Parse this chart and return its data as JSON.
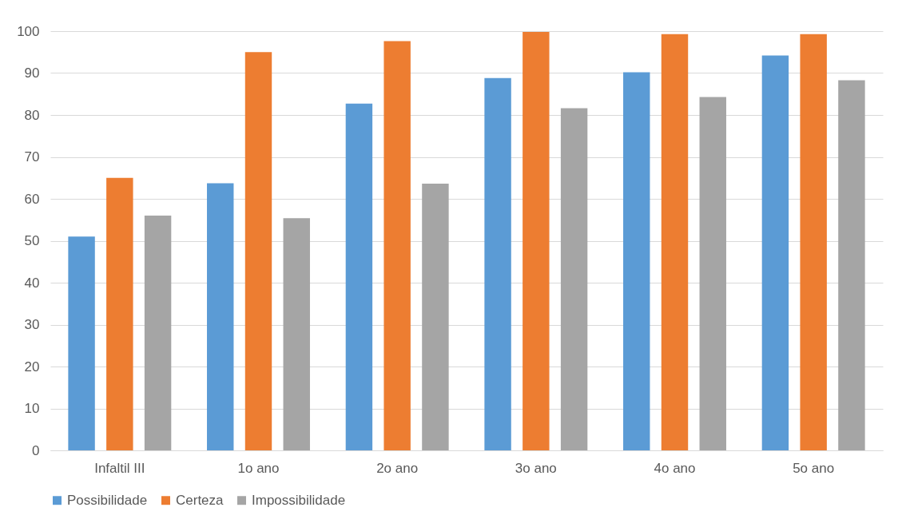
{
  "chart_data": {
    "type": "bar",
    "categories": [
      "Infaltil III",
      "1o ano",
      "2o ano",
      "3o ano",
      "4o ano",
      "5o ano"
    ],
    "series": [
      {
        "name": "Possibilidade",
        "color": "#5b9bd5",
        "values": [
          51,
          63.7,
          82.7,
          88.8,
          90.2,
          94.2
        ]
      },
      {
        "name": "Certeza",
        "color": "#ed7d31",
        "values": [
          65,
          95,
          97.6,
          99.8,
          99.3,
          99.3
        ]
      },
      {
        "name": "Impossibilidade",
        "color": "#a5a5a5",
        "values": [
          56,
          55.4,
          63.6,
          81.6,
          84.3,
          88.3
        ]
      }
    ],
    "ylim": [
      0,
      100
    ],
    "yticks": [
      0,
      10,
      20,
      30,
      40,
      50,
      60,
      70,
      80,
      90,
      100
    ],
    "grid": "y",
    "legend": "bottom"
  }
}
